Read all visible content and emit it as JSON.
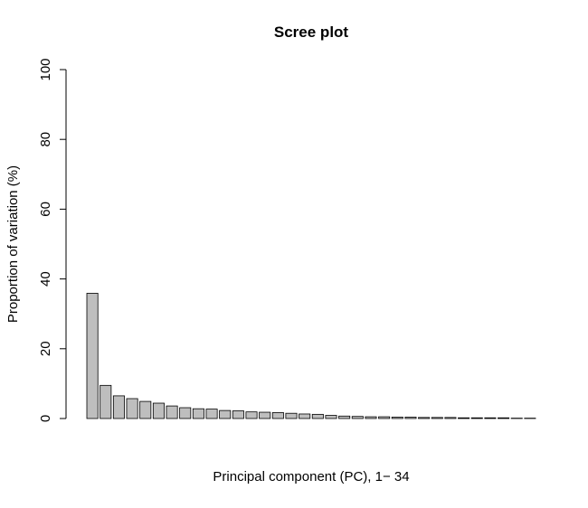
{
  "chart_data": {
    "type": "bar",
    "title": "Scree plot",
    "x_label": "Principal component (PC), 1− 34",
    "y_label": "Proportion of variation (%)",
    "values": [
      35.9,
      9.5,
      6.5,
      5.7,
      4.9,
      4.4,
      3.6,
      3.1,
      2.8,
      2.7,
      2.3,
      2.2,
      1.9,
      1.8,
      1.7,
      1.5,
      1.3,
      1.2,
      0.9,
      0.7,
      0.6,
      0.5,
      0.5,
      0.4,
      0.4,
      0.3,
      0.3,
      0.3,
      0.2,
      0.2,
      0.2,
      0.2,
      0.1,
      0.1
    ],
    "color": "#bebebe",
    "ylim": [
      0,
      100
    ],
    "yticks": [
      0,
      20,
      40,
      60,
      80,
      100
    ]
  }
}
